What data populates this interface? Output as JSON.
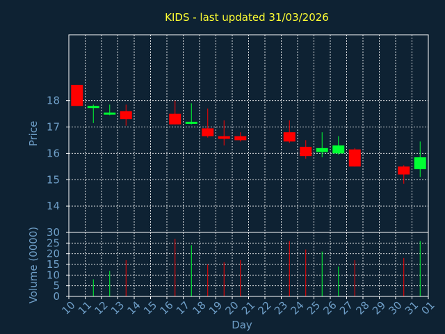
{
  "chart_data": {
    "type": "candlestick",
    "title": "KIDS - last updated 31/03/2026",
    "price_axis": {
      "label": "Price",
      "ylim": [
        13,
        20.5
      ],
      "ticks": [
        14,
        15,
        16,
        17,
        18
      ]
    },
    "volume_axis": {
      "label": "Volume (0000)",
      "ylim": [
        0,
        30
      ],
      "ticks": [
        0,
        5,
        10,
        15,
        20,
        25,
        30
      ]
    },
    "xlabel": "Day",
    "x_ticks": [
      "10",
      "11",
      "12",
      "13",
      "14",
      "15",
      "16",
      "17",
      "18",
      "19",
      "20",
      "21",
      "22",
      "23",
      "24",
      "25",
      "26",
      "27",
      "28",
      "29",
      "30",
      "31",
      "01"
    ],
    "grid": true,
    "colors": {
      "up": "#00ff33",
      "down": "#ff0000",
      "background": "#0e2233",
      "title": "#ffff33",
      "axis_text": "#6f9fc8"
    },
    "candles": [
      {
        "day": "10",
        "open": 18.6,
        "close": 17.8,
        "high": 18.6,
        "low": 17.8,
        "volume": 0
      },
      {
        "day": "11",
        "open": 17.75,
        "close": 17.8,
        "high": 17.85,
        "low": 17.15,
        "volume": 8
      },
      {
        "day": "12",
        "open": 17.5,
        "close": 17.55,
        "high": 17.85,
        "low": 17.45,
        "volume": 12
      },
      {
        "day": "13",
        "open": 17.6,
        "close": 17.3,
        "high": 17.85,
        "low": 17.05,
        "volume": 17
      },
      {
        "day": "16",
        "open": 17.5,
        "close": 17.1,
        "high": 18.0,
        "low": 17.1,
        "volume": 27
      },
      {
        "day": "17",
        "open": 17.15,
        "close": 17.2,
        "high": 17.9,
        "low": 17.1,
        "volume": 24
      },
      {
        "day": "18",
        "open": 16.95,
        "close": 16.65,
        "high": 17.7,
        "low": 16.6,
        "volume": 15
      },
      {
        "day": "19",
        "open": 16.65,
        "close": 16.55,
        "high": 17.25,
        "low": 16.3,
        "volume": 16
      },
      {
        "day": "20",
        "open": 16.65,
        "close": 16.5,
        "high": 16.8,
        "low": 16.45,
        "volume": 17
      },
      {
        "day": "23",
        "open": 16.8,
        "close": 16.45,
        "high": 17.25,
        "low": 16.4,
        "volume": 26
      },
      {
        "day": "24",
        "open": 16.25,
        "close": 15.9,
        "high": 16.5,
        "low": 15.8,
        "volume": 22
      },
      {
        "day": "25",
        "open": 16.05,
        "close": 16.2,
        "high": 16.8,
        "low": 15.85,
        "volume": 21
      },
      {
        "day": "26",
        "open": 16.0,
        "close": 16.3,
        "high": 16.65,
        "low": 15.95,
        "volume": 14
      },
      {
        "day": "27",
        "open": 16.15,
        "close": 15.5,
        "high": 16.2,
        "low": 15.5,
        "volume": 17
      },
      {
        "day": "30",
        "open": 15.5,
        "close": 15.2,
        "high": 15.55,
        "low": 14.85,
        "volume": 18
      },
      {
        "day": "31",
        "open": 15.4,
        "close": 15.85,
        "high": 16.45,
        "low": 15.1,
        "volume": 26
      }
    ]
  }
}
